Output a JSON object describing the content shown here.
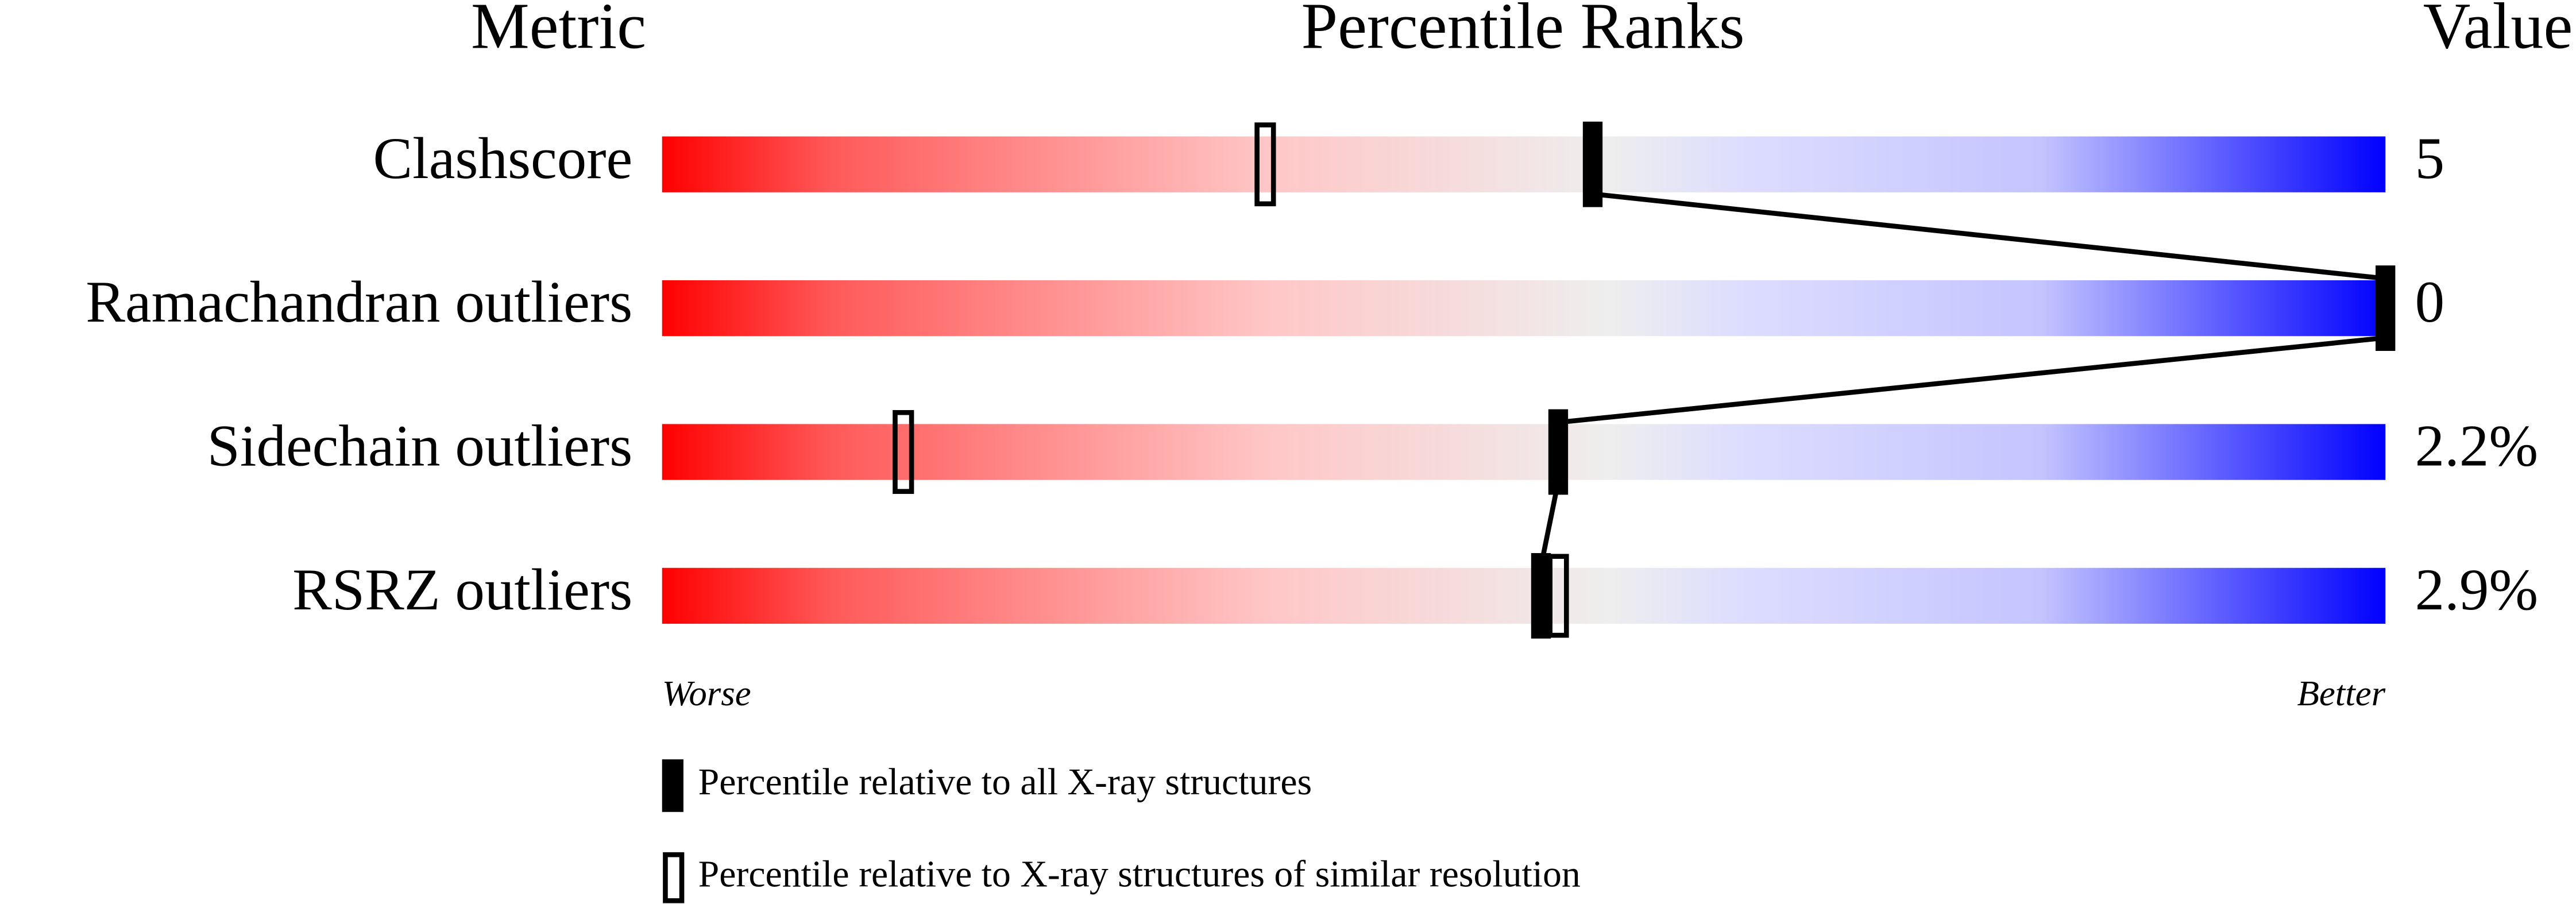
{
  "chart_data": {
    "type": "percentile-slider",
    "headers": {
      "metric": "Metric",
      "ranks": "Percentile Ranks",
      "value": "Value"
    },
    "categories": [
      "Clashscore",
      "Ramachandran outliers",
      "Sidechain outliers",
      "RSRZ outliers"
    ],
    "series": [
      {
        "name": "Percentile relative to all X-ray structures",
        "color": "#000000",
        "style": "filled",
        "values": [
          54,
          100,
          52,
          51
        ]
      },
      {
        "name": "Percentile relative to X-ray structures of similar resolution",
        "color": "#000000",
        "style": "open",
        "values": [
          35,
          null,
          14,
          52
        ]
      }
    ],
    "value_labels": [
      "5",
      "0",
      "2.2%",
      "2.9%"
    ],
    "xlim": [
      0,
      100
    ],
    "axis_labels": {
      "left": "Worse",
      "right": "Better"
    }
  }
}
